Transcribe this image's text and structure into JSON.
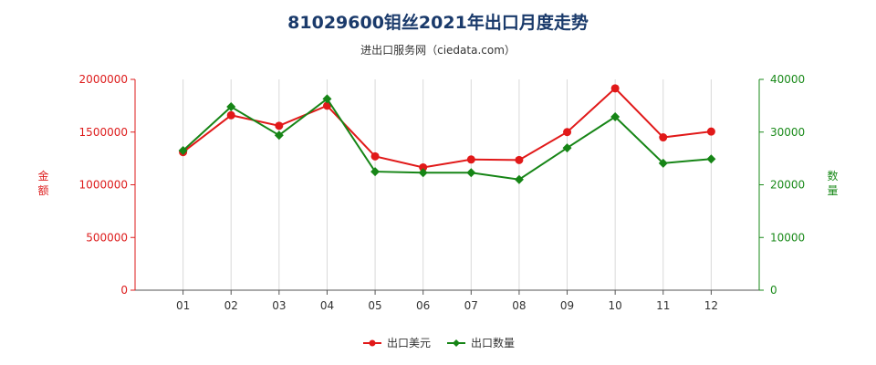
{
  "header": {
    "title": "81029600钼丝2021年出口月度走势",
    "subtitle": "进出口服务网（ciedata.com）"
  },
  "chart_data": {
    "type": "line",
    "title": "81029600钼丝2021年出口月度走势",
    "subtitle": "进出口服务网（ciedata.com）",
    "categories": [
      "01",
      "02",
      "03",
      "04",
      "05",
      "06",
      "07",
      "08",
      "09",
      "10",
      "11",
      "12"
    ],
    "y_left": {
      "label": "金额",
      "ylim": [
        0,
        2000000
      ],
      "ticks": [
        "0",
        "500000",
        "1000000",
        "1500000",
        "2000000"
      ],
      "color": "#dd1c1c"
    },
    "y_right": {
      "label": "数量",
      "ylim": [
        0,
        40000
      ],
      "ticks": [
        "0",
        "10000",
        "20000",
        "30000",
        "40000"
      ],
      "color": "#1a8a1a"
    },
    "series": [
      {
        "name": "出口美元",
        "axis": "left",
        "color": "#e11919",
        "marker": "circle",
        "values": [
          1310000,
          1660000,
          1560000,
          1750000,
          1270000,
          1165000,
          1240000,
          1235000,
          1500000,
          1915000,
          1450000,
          1505000
        ]
      },
      {
        "name": "出口数量",
        "axis": "right",
        "color": "#168516",
        "marker": "diamond",
        "values": [
          26500,
          34800,
          29400,
          36300,
          22500,
          22300,
          22300,
          21000,
          27000,
          32900,
          24100,
          24900
        ]
      }
    ],
    "grid": {
      "vertical": true,
      "horizontal": false
    },
    "legend": "bottom-center"
  }
}
